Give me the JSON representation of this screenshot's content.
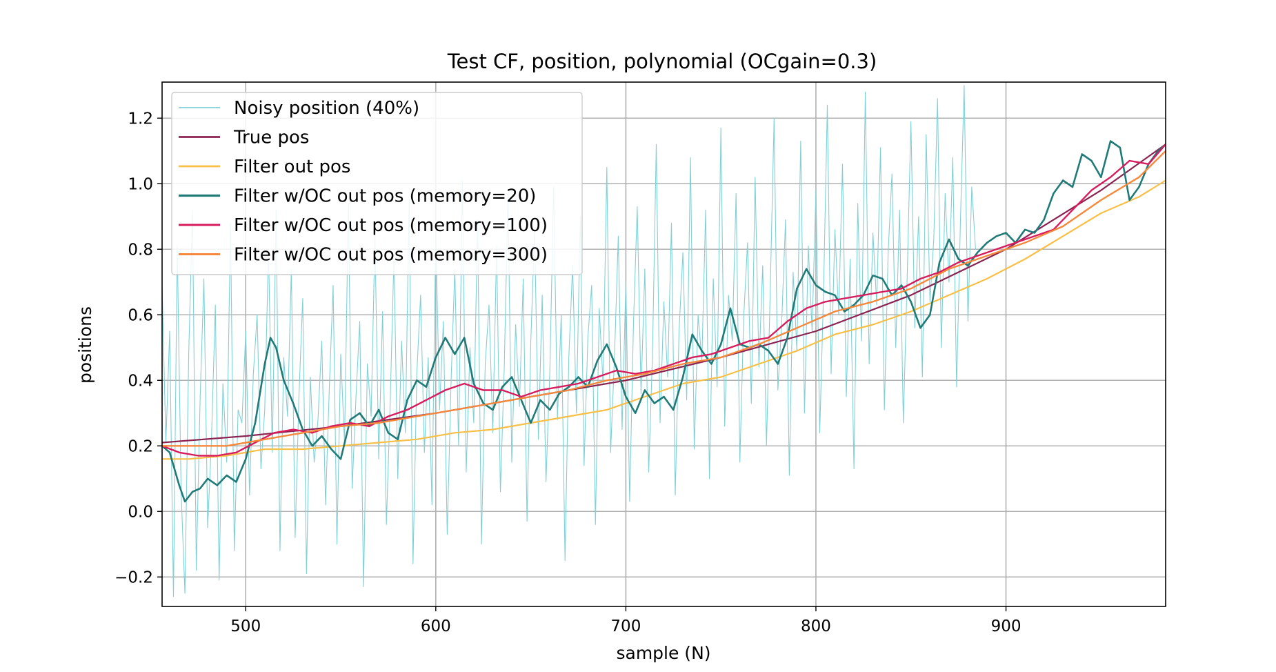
{
  "chart_data": {
    "type": "line",
    "title": "Test CF, position, polynomial (OCgain=0.3)",
    "xlabel": "sample (N)",
    "ylabel": "positions",
    "xlim": [
      456,
      984
    ],
    "ylim": [
      -0.29,
      1.31
    ],
    "xticks": [
      500,
      600,
      700,
      800,
      900
    ],
    "yticks": [
      -0.2,
      0.0,
      0.2,
      0.4,
      0.6,
      0.8,
      1.0,
      1.2
    ],
    "xtick_labels": [
      "500",
      "600",
      "700",
      "800",
      "900"
    ],
    "ytick_labels": [
      "−0.2",
      "0.0",
      "0.2",
      "0.4",
      "0.6",
      "0.8",
      "1.0",
      "1.2"
    ],
    "grid": true,
    "legend_position": "upper-left",
    "series": [
      {
        "name": "Noisy position (40%)",
        "color": "#7fd0d8",
        "width": 1.1,
        "x_start": 456,
        "x_step": 2,
        "values": [
          0.69,
          0.21,
          0.55,
          -0.26,
          0.81,
          0.06,
          -0.25,
          0.48,
          0.92,
          -0.18,
          0.34,
          0.71,
          -0.05,
          0.22,
          0.63,
          -0.21,
          0.39,
          0.15,
          0.88,
          -0.12,
          0.31,
          0.27,
          0.55,
          0.05,
          0.42,
          0.6,
          0.13,
          0.31,
          0.8,
          0.18,
          0.92,
          -0.12,
          0.47,
          0.29,
          0.74,
          -0.08,
          0.35,
          0.65,
          -0.19,
          0.41,
          0.15,
          0.28,
          0.52,
          0.02,
          0.38,
          0.69,
          -0.1,
          0.48,
          0.21,
          0.94,
          0.07,
          0.35,
          0.58,
          -0.23,
          0.45,
          0.29,
          0.84,
          0.16,
          0.61,
          -0.04,
          0.33,
          0.78,
          0.1,
          0.52,
          0.24,
          0.95,
          -0.16,
          0.42,
          0.66,
          0.18,
          0.47,
          0.02,
          0.85,
          0.31,
          0.58,
          -0.07,
          0.39,
          0.74,
          0.2,
          1.01,
          0.12,
          0.5,
          0.27,
          0.89,
          -0.1,
          0.45,
          0.63,
          0.24,
          0.81,
          0.06,
          0.43,
          0.97,
          0.15,
          0.57,
          0.32,
          0.71,
          -0.03,
          0.52,
          0.86,
          0.22,
          0.66,
          0.09,
          0.43,
          0.99,
          0.28,
          0.6,
          -0.15,
          0.47,
          0.75,
          0.3,
          0.9,
          0.14,
          0.53,
          0.69,
          -0.04,
          0.62,
          0.39,
          1.05,
          0.18,
          0.47,
          0.84,
          0.25,
          0.7,
          0.03,
          0.57,
          0.93,
          0.36,
          0.74,
          0.12,
          0.48,
          1.12,
          0.27,
          0.64,
          0.41,
          0.88,
          0.05,
          0.55,
          0.79,
          0.34,
          1.08,
          0.19,
          0.6,
          0.46,
          0.92,
          0.1,
          0.71,
          0.38,
          1.17,
          0.26,
          0.66,
          0.52,
          0.97,
          0.15,
          0.59,
          0.82,
          0.33,
          1.02,
          0.44,
          0.75,
          0.2,
          0.68,
          1.2,
          0.37,
          0.58,
          0.89,
          0.11,
          0.73,
          0.49,
          1.13,
          0.3,
          0.81,
          0.55,
          0.98,
          0.24,
          0.67,
          1.24,
          0.42,
          0.86,
          0.6,
          1.06,
          0.35,
          0.77,
          0.13,
          0.94,
          0.52,
          1.28,
          0.45,
          0.85,
          0.63,
          1.11,
          0.31,
          0.79,
          1.03,
          0.5,
          0.92,
          0.27,
          0.71,
          1.19,
          0.56,
          0.9,
          0.41,
          1.15,
          0.64,
          0.83,
          1.26,
          0.5,
          0.97,
          0.7,
          1.08,
          0.38,
          0.88,
          1.3,
          0.58,
          0.99,
          0.8
        ]
      },
      {
        "name": "True pos",
        "color": "#8b2252",
        "width": 2.2,
        "x": [
          456,
          500,
          550,
          600,
          650,
          700,
          750,
          800,
          850,
          900,
          950,
          984
        ],
        "values": [
          0.21,
          0.23,
          0.26,
          0.3,
          0.35,
          0.4,
          0.47,
          0.55,
          0.66,
          0.8,
          0.98,
          1.12
        ]
      },
      {
        "name": "Filter out pos",
        "color": "#f7bf45",
        "width": 2.2,
        "x": [
          456,
          470,
          490,
          510,
          530,
          550,
          570,
          590,
          610,
          630,
          650,
          670,
          690,
          710,
          730,
          750,
          770,
          790,
          810,
          830,
          850,
          870,
          890,
          910,
          930,
          950,
          970,
          984
        ],
        "values": [
          0.16,
          0.16,
          0.17,
          0.19,
          0.19,
          0.2,
          0.21,
          0.22,
          0.24,
          0.25,
          0.27,
          0.29,
          0.31,
          0.35,
          0.39,
          0.41,
          0.45,
          0.49,
          0.54,
          0.57,
          0.61,
          0.66,
          0.71,
          0.77,
          0.84,
          0.91,
          0.96,
          1.01
        ]
      },
      {
        "name": "Filter w/OC out pos (memory=20)",
        "color": "#1f7a78",
        "width": 2.6,
        "x": [
          456,
          460,
          465,
          468,
          472,
          476,
          480,
          485,
          490,
          495,
          500,
          505,
          510,
          513,
          516,
          520,
          525,
          530,
          535,
          540,
          545,
          550,
          555,
          560,
          565,
          570,
          575,
          580,
          585,
          590,
          595,
          600,
          605,
          610,
          615,
          620,
          625,
          630,
          635,
          640,
          645,
          650,
          655,
          660,
          665,
          670,
          675,
          680,
          685,
          690,
          695,
          700,
          705,
          710,
          715,
          720,
          725,
          730,
          735,
          740,
          745,
          750,
          755,
          760,
          765,
          770,
          775,
          780,
          785,
          790,
          795,
          800,
          805,
          810,
          815,
          820,
          825,
          830,
          835,
          840,
          845,
          850,
          855,
          860,
          865,
          870,
          875,
          880,
          885,
          890,
          895,
          900,
          905,
          910,
          915,
          920,
          925,
          930,
          935,
          940,
          945,
          950,
          955,
          960,
          965,
          970,
          975,
          980,
          984
        ],
        "values": [
          0.2,
          0.18,
          0.08,
          0.03,
          0.06,
          0.07,
          0.1,
          0.08,
          0.11,
          0.09,
          0.16,
          0.27,
          0.45,
          0.53,
          0.5,
          0.4,
          0.33,
          0.25,
          0.2,
          0.23,
          0.19,
          0.16,
          0.28,
          0.3,
          0.26,
          0.31,
          0.24,
          0.22,
          0.34,
          0.4,
          0.38,
          0.47,
          0.53,
          0.48,
          0.53,
          0.39,
          0.33,
          0.31,
          0.38,
          0.41,
          0.34,
          0.27,
          0.34,
          0.31,
          0.36,
          0.38,
          0.41,
          0.38,
          0.46,
          0.51,
          0.44,
          0.35,
          0.3,
          0.37,
          0.33,
          0.35,
          0.31,
          0.41,
          0.54,
          0.49,
          0.45,
          0.51,
          0.62,
          0.51,
          0.5,
          0.51,
          0.49,
          0.45,
          0.53,
          0.68,
          0.74,
          0.69,
          0.67,
          0.66,
          0.61,
          0.63,
          0.66,
          0.72,
          0.71,
          0.66,
          0.69,
          0.64,
          0.56,
          0.6,
          0.76,
          0.83,
          0.77,
          0.75,
          0.79,
          0.82,
          0.84,
          0.85,
          0.82,
          0.86,
          0.85,
          0.89,
          0.97,
          1.01,
          0.99,
          1.09,
          1.07,
          1.02,
          1.13,
          1.11,
          0.95,
          0.99,
          1.06,
          1.1,
          1.12
        ]
      },
      {
        "name": "Filter w/OC out pos (memory=100)",
        "color": "#d81b5c",
        "width": 2.4,
        "x": [
          456,
          465,
          475,
          485,
          495,
          505,
          515,
          525,
          535,
          545,
          555,
          565,
          575,
          585,
          595,
          605,
          615,
          625,
          635,
          645,
          655,
          665,
          675,
          685,
          695,
          705,
          715,
          725,
          735,
          745,
          755,
          765,
          775,
          785,
          795,
          805,
          815,
          825,
          835,
          845,
          855,
          865,
          875,
          885,
          895,
          905,
          915,
          925,
          935,
          945,
          955,
          965,
          975,
          984
        ],
        "values": [
          0.2,
          0.18,
          0.17,
          0.17,
          0.18,
          0.21,
          0.24,
          0.25,
          0.24,
          0.26,
          0.27,
          0.26,
          0.29,
          0.31,
          0.34,
          0.37,
          0.39,
          0.37,
          0.37,
          0.35,
          0.37,
          0.38,
          0.39,
          0.41,
          0.43,
          0.42,
          0.43,
          0.45,
          0.47,
          0.48,
          0.5,
          0.52,
          0.53,
          0.58,
          0.62,
          0.64,
          0.65,
          0.66,
          0.67,
          0.68,
          0.71,
          0.73,
          0.76,
          0.78,
          0.8,
          0.82,
          0.84,
          0.86,
          0.92,
          0.98,
          1.02,
          1.07,
          1.06,
          1.12
        ]
      },
      {
        "name": "Filter w/OC out pos (memory=300)",
        "color": "#f5883a",
        "width": 2.4,
        "x": [
          456,
          470,
          490,
          510,
          530,
          550,
          570,
          590,
          610,
          630,
          650,
          670,
          690,
          710,
          730,
          750,
          770,
          790,
          810,
          830,
          850,
          870,
          890,
          910,
          930,
          950,
          970,
          984
        ],
        "values": [
          0.2,
          0.2,
          0.2,
          0.22,
          0.24,
          0.26,
          0.27,
          0.29,
          0.31,
          0.33,
          0.35,
          0.37,
          0.4,
          0.42,
          0.45,
          0.47,
          0.51,
          0.56,
          0.61,
          0.64,
          0.68,
          0.74,
          0.78,
          0.82,
          0.87,
          0.95,
          1.02,
          1.1
        ]
      }
    ]
  }
}
